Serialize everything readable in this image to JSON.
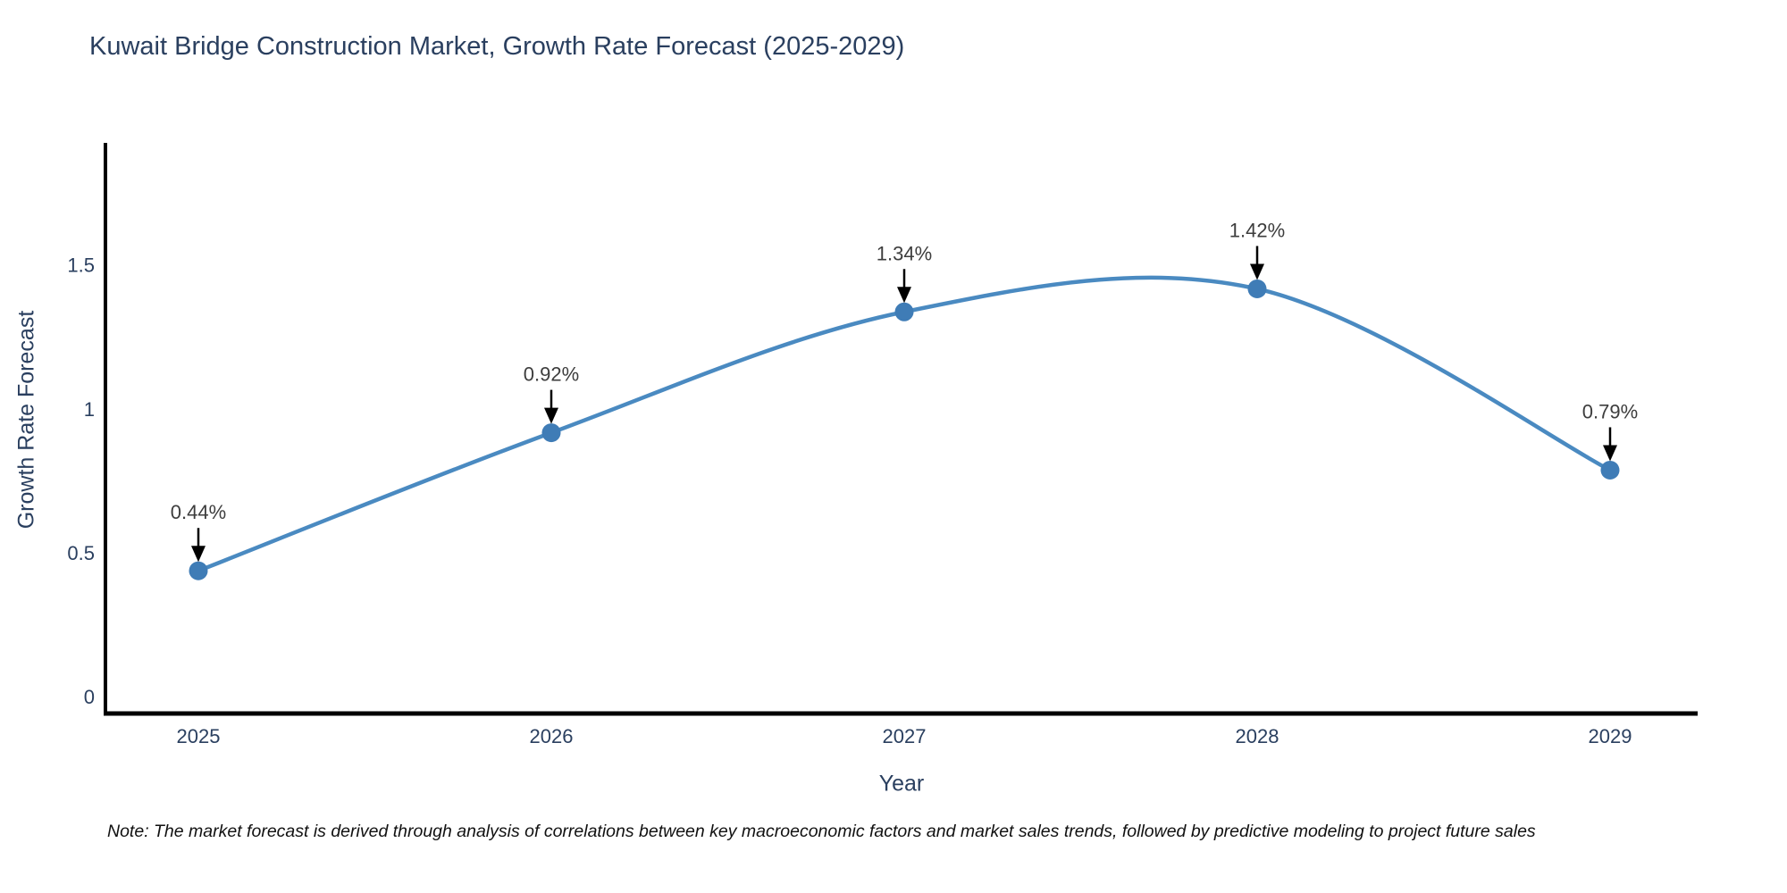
{
  "title": "Kuwait Bridge Construction Market, Growth Rate Forecast (2025-2029)",
  "note": "Note: The market forecast is derived through analysis of correlations between key macroeconomic factors and market sales trends, followed by predictive modeling to project future sales",
  "chart_data": {
    "type": "line",
    "line_shape": "spline",
    "title": "Kuwait Bridge Construction Market, Growth Rate Forecast (2025-2029)",
    "xlabel": "Year",
    "ylabel": "Growth Rate Forecast",
    "categories": [
      "2025",
      "2026",
      "2027",
      "2028",
      "2029"
    ],
    "values": [
      0.44,
      0.92,
      1.34,
      1.42,
      0.79
    ],
    "point_labels": [
      "0.44%",
      "0.92%",
      "1.34%",
      "1.42%",
      "0.79%"
    ],
    "yticks": [
      0,
      0.5,
      1,
      1.5
    ],
    "ytick_labels": [
      "0",
      "0.5",
      "1",
      "1.5"
    ],
    "ylim": [
      -0.06,
      1.93
    ],
    "grid": false,
    "legend": "none",
    "colors": {
      "line": "#4a8ac1",
      "marker": "#3f7cb6",
      "axis": "#000000",
      "text": "#2a3f5f",
      "arrow": "#000000"
    }
  }
}
